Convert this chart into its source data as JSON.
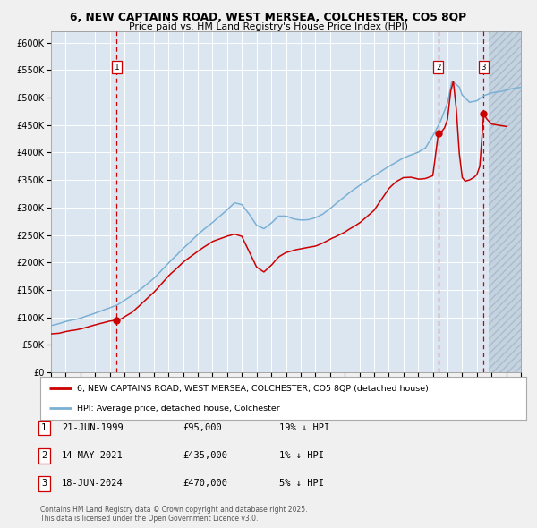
{
  "title": "6, NEW CAPTAINS ROAD, WEST MERSEA, COLCHESTER, CO5 8QP",
  "subtitle": "Price paid vs. HM Land Registry's House Price Index (HPI)",
  "fig_bg_color": "#f0f0f0",
  "plot_bg_color": "#dce6f1",
  "grid_color": "#ffffff",
  "hpi_color": "#7ab0d4",
  "price_color": "#cc0000",
  "marker_color": "#cc0000",
  "sale1_date": 1999.47,
  "sale1_price": 95000,
  "sale2_date": 2021.37,
  "sale2_price": 435000,
  "sale3_date": 2024.46,
  "sale3_price": 470000,
  "xmin": 1995.0,
  "xmax": 2027.0,
  "ymin": 0,
  "ymax": 620000,
  "yticks": [
    0,
    50000,
    100000,
    150000,
    200000,
    250000,
    300000,
    350000,
    400000,
    450000,
    500000,
    550000,
    600000
  ],
  "legend_label1": "6, NEW CAPTAINS ROAD, WEST MERSEA, COLCHESTER, CO5 8QP (detached house)",
  "legend_label2": "HPI: Average price, detached house, Colchester",
  "note1_label": "1",
  "note1_date": "21-JUN-1999",
  "note1_price": "£95,000",
  "note1_hpi": "19% ↓ HPI",
  "note2_label": "2",
  "note2_date": "14-MAY-2021",
  "note2_price": "£435,000",
  "note2_hpi": "1% ↓ HPI",
  "note3_label": "3",
  "note3_date": "18-JUN-2024",
  "note3_price": "£470,000",
  "note3_hpi": "5% ↓ HPI",
  "copyright": "Contains HM Land Registry data © Crown copyright and database right 2025.\nThis data is licensed under the Open Government Licence v3.0."
}
